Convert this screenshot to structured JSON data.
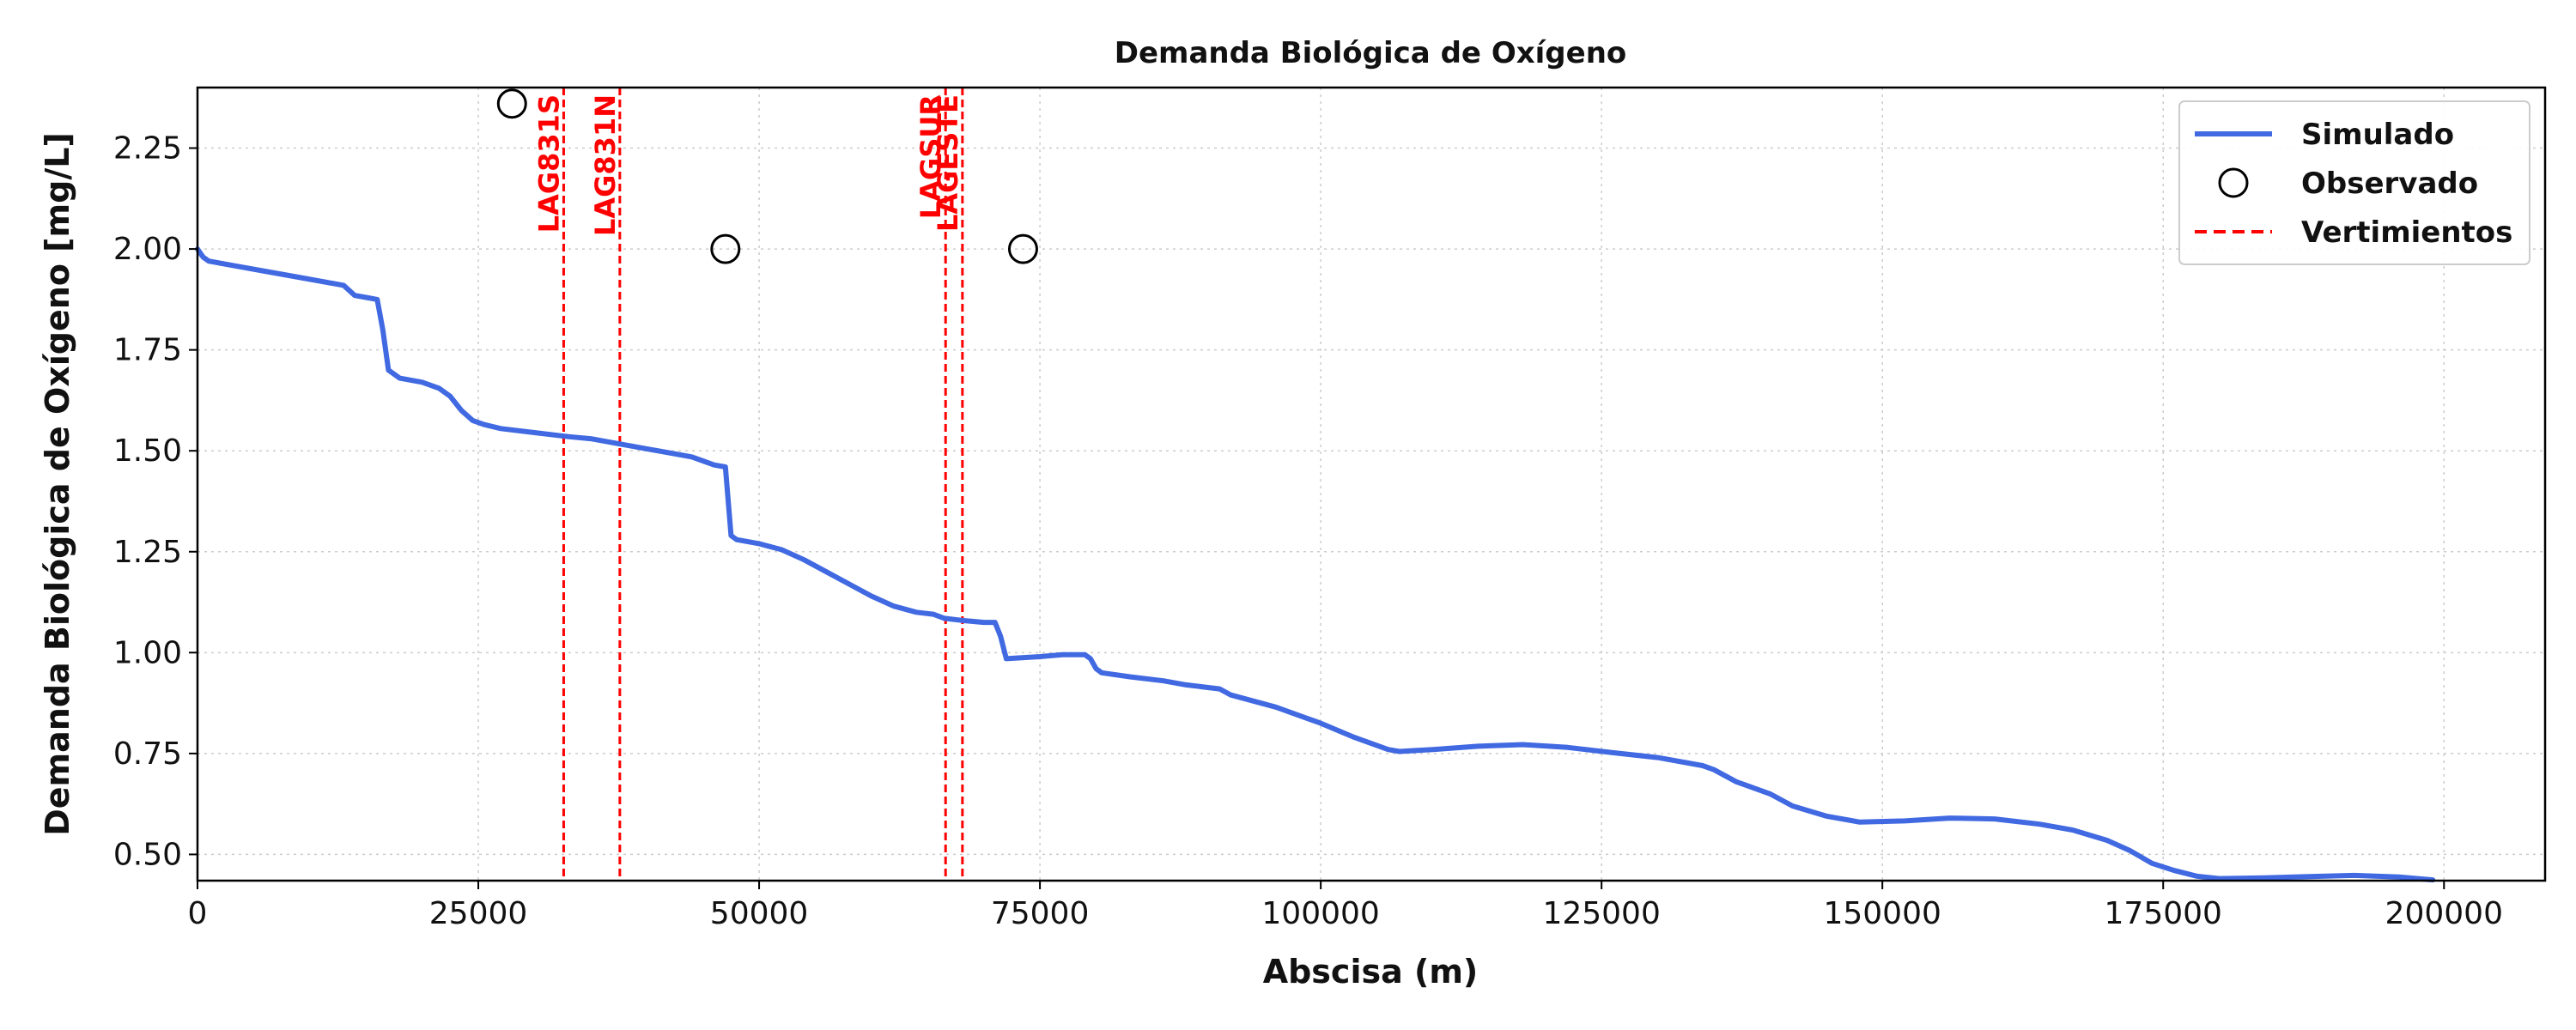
{
  "chart_data": {
    "type": "line",
    "title": "Demanda Biológica de Oxígeno",
    "xlabel": "Abscisa (m)",
    "ylabel": "Demanda Biológica de Oxígeno [mg/L]",
    "xlim": [
      0,
      209000
    ],
    "ylim": [
      0.435,
      2.4
    ],
    "xticks": [
      0,
      25000,
      50000,
      75000,
      100000,
      125000,
      150000,
      175000,
      200000
    ],
    "yticks": [
      0.5,
      0.75,
      1.0,
      1.25,
      1.5,
      1.75,
      2.0,
      2.25
    ],
    "xtick_labels": [
      "0",
      "25000",
      "50000",
      "75000",
      "100000",
      "125000",
      "150000",
      "175000",
      "200000"
    ],
    "ytick_labels": [
      "0.50",
      "0.75",
      "1.00",
      "1.25",
      "1.50",
      "1.75",
      "2.00",
      "2.25"
    ],
    "grid": true,
    "legend_position": "top-right",
    "legend": [
      {
        "label": "Simulado",
        "kind": "line",
        "color": "#4169e1"
      },
      {
        "label": "Observado",
        "kind": "marker",
        "color": "#000000"
      },
      {
        "label": "Vertimientos",
        "kind": "dashed",
        "color": "#ff0000"
      }
    ],
    "series": [
      {
        "name": "Simulado",
        "color": "#4169e1",
        "x": [
          0,
          500,
          1000,
          3000,
          6000,
          9000,
          12000,
          13000,
          14000,
          15000,
          16000,
          16500,
          17000,
          18000,
          20000,
          21500,
          22500,
          23500,
          24500,
          25500,
          27000,
          30000,
          33000,
          35000,
          37000,
          40000,
          44000,
          45000,
          46000,
          47000,
          47500,
          48000,
          50000,
          52000,
          54000,
          56000,
          58000,
          60000,
          62000,
          64000,
          65500,
          66500,
          68000,
          70000,
          71000,
          71500,
          72000,
          75000,
          77000,
          79000,
          79500,
          80000,
          80500,
          83000,
          86000,
          88000,
          91000,
          92000,
          96000,
          100000,
          103000,
          106000,
          107000,
          110000,
          114000,
          118000,
          122000,
          126000,
          130000,
          134000,
          135000,
          137000,
          140000,
          142000,
          145000,
          148000,
          152000,
          156000,
          160000,
          164000,
          167000,
          170000,
          172000,
          174000,
          176000,
          178000,
          180000,
          184000,
          188000,
          192000,
          196000,
          199000
        ],
        "values": [
          2.0,
          1.98,
          1.97,
          1.96,
          1.945,
          1.93,
          1.915,
          1.91,
          1.885,
          1.88,
          1.875,
          1.8,
          1.7,
          1.68,
          1.67,
          1.655,
          1.635,
          1.6,
          1.575,
          1.565,
          1.555,
          1.545,
          1.535,
          1.53,
          1.52,
          1.505,
          1.485,
          1.475,
          1.465,
          1.46,
          1.29,
          1.28,
          1.27,
          1.255,
          1.23,
          1.2,
          1.17,
          1.14,
          1.115,
          1.1,
          1.095,
          1.085,
          1.08,
          1.075,
          1.075,
          1.04,
          0.985,
          0.99,
          0.995,
          0.995,
          0.985,
          0.96,
          0.95,
          0.94,
          0.93,
          0.92,
          0.91,
          0.895,
          0.865,
          0.825,
          0.79,
          0.76,
          0.755,
          0.76,
          0.768,
          0.772,
          0.765,
          0.752,
          0.74,
          0.72,
          0.71,
          0.68,
          0.65,
          0.62,
          0.595,
          0.58,
          0.583,
          0.59,
          0.588,
          0.575,
          0.56,
          0.535,
          0.51,
          0.478,
          0.46,
          0.446,
          0.44,
          0.442,
          0.445,
          0.448,
          0.444,
          0.437
        ]
      },
      {
        "name": "Observado",
        "kind": "marker",
        "x": [
          28000,
          47000,
          73500
        ],
        "values": [
          2.36,
          2.0,
          2.0
        ]
      }
    ],
    "vertimientos": [
      {
        "label": "LAG831S",
        "x": 32600
      },
      {
        "label": "LAG831N",
        "x": 37600
      },
      {
        "label": "LAGSUR",
        "x": 66600
      },
      {
        "label": "LAGESTE",
        "x": 68100
      }
    ]
  }
}
